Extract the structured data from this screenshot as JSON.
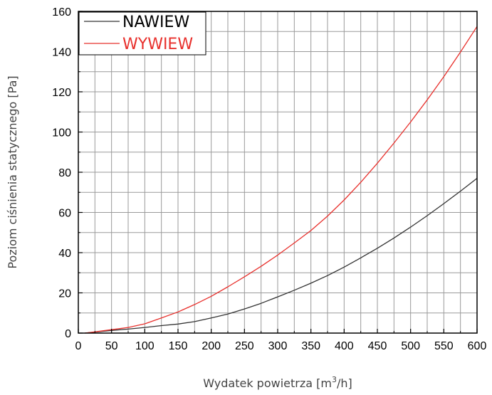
{
  "chart_data": {
    "type": "line",
    "title": "",
    "xlabel_main": "Wydatek powietrza [m",
    "xlabel_sup": "3",
    "xlabel_tail": "/h]",
    "ylabel": "Poziom ciśnienia statycznego [Pa]",
    "xlim": [
      0,
      600
    ],
    "ylim": [
      0,
      160
    ],
    "x_ticks": [
      0,
      50,
      100,
      150,
      200,
      250,
      300,
      350,
      400,
      450,
      500,
      550,
      600
    ],
    "y_ticks": [
      0,
      20,
      40,
      60,
      80,
      100,
      120,
      140,
      160
    ],
    "x_tick_labels": [
      "0",
      "50",
      "100",
      "150",
      "200",
      "250",
      "300",
      "350",
      "400",
      "450",
      "500",
      "550",
      "600"
    ],
    "y_tick_labels": [
      "0",
      "20",
      "40",
      "60",
      "80",
      "100",
      "120",
      "140",
      "160"
    ],
    "grid": true,
    "legend_position": "top-left",
    "series": [
      {
        "name": "NAWIEW",
        "color": "#333333",
        "x": [
          10,
          25,
          50,
          75,
          100,
          125,
          150,
          175,
          200,
          225,
          250,
          275,
          300,
          325,
          350,
          375,
          400,
          425,
          450,
          475,
          500,
          525,
          550,
          575,
          600
        ],
        "y": [
          0,
          0.5,
          1.3,
          2.0,
          2.8,
          3.7,
          4.5,
          5.7,
          7.5,
          9.5,
          12.0,
          14.8,
          18.0,
          21.3,
          24.8,
          28.6,
          32.8,
          37.4,
          42.2,
          47.3,
          52.7,
          58.4,
          64.4,
          70.6,
          77.0
        ]
      },
      {
        "name": "WYWIEW",
        "color": "#e8302c",
        "x": [
          10,
          25,
          50,
          75,
          100,
          125,
          150,
          175,
          200,
          225,
          250,
          275,
          300,
          325,
          350,
          375,
          400,
          425,
          450,
          475,
          500,
          525,
          550,
          575,
          600
        ],
        "y": [
          0,
          0.6,
          1.7,
          2.8,
          4.6,
          7.5,
          10.5,
          14.2,
          18.3,
          23.0,
          28.0,
          33.2,
          38.8,
          44.8,
          51.0,
          58.2,
          66.2,
          75.0,
          84.5,
          94.5,
          105.0,
          116.0,
          127.5,
          139.8,
          152.5
        ]
      }
    ]
  }
}
